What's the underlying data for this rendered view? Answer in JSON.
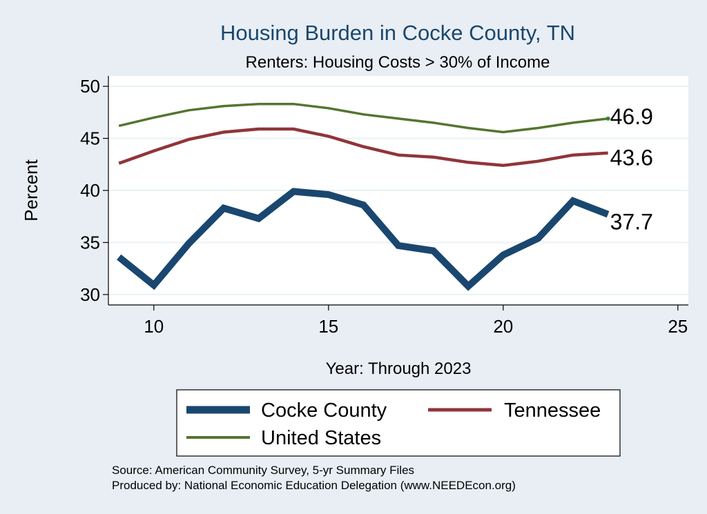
{
  "chart_data": {
    "type": "line",
    "title": "Housing Burden in Cocke County, TN",
    "subtitle": "Renters: Housing Costs > 30% of Income",
    "xlabel": "Year: Through 2023",
    "ylabel": "Percent",
    "xlim": [
      8.7,
      25.3
    ],
    "ylim": [
      29.0,
      51.0
    ],
    "xticks": [
      10,
      15,
      20,
      25
    ],
    "yticks": [
      30,
      35,
      40,
      45,
      50
    ],
    "grid": true,
    "legend_position": "bottom",
    "series": [
      {
        "name": "Cocke County",
        "color": "#1a476f",
        "x": [
          9,
          10,
          11,
          12,
          13,
          14,
          15,
          16,
          17,
          18,
          19,
          20,
          21,
          22,
          23
        ],
        "values": [
          33.6,
          30.9,
          34.9,
          38.3,
          37.3,
          39.9,
          39.6,
          38.6,
          34.7,
          34.2,
          30.8,
          33.8,
          35.4,
          39.0,
          37.7
        ],
        "end_label": "37.7"
      },
      {
        "name": "Tennessee",
        "color": "#90353b",
        "x": [
          9,
          10,
          11,
          12,
          13,
          14,
          15,
          16,
          17,
          18,
          19,
          20,
          21,
          22,
          23
        ],
        "values": [
          42.6,
          43.8,
          44.9,
          45.6,
          45.9,
          45.9,
          45.2,
          44.2,
          43.4,
          43.2,
          42.7,
          42.4,
          42.8,
          43.4,
          43.6
        ],
        "end_label": "43.6"
      },
      {
        "name": "United States",
        "color": "#55752f",
        "x": [
          9,
          10,
          11,
          12,
          13,
          14,
          15,
          16,
          17,
          18,
          19,
          20,
          21,
          22,
          23
        ],
        "values": [
          46.2,
          47.0,
          47.7,
          48.1,
          48.3,
          48.3,
          47.9,
          47.3,
          46.9,
          46.5,
          46.0,
          45.6,
          46.0,
          46.5,
          46.9
        ],
        "end_label": "46.9"
      }
    ],
    "notes": [
      "Source: American Community Survey, 5-yr Summary Files",
      "Produced by: National Economic Education Delegation (www.NEEDEcon.org)"
    ]
  }
}
